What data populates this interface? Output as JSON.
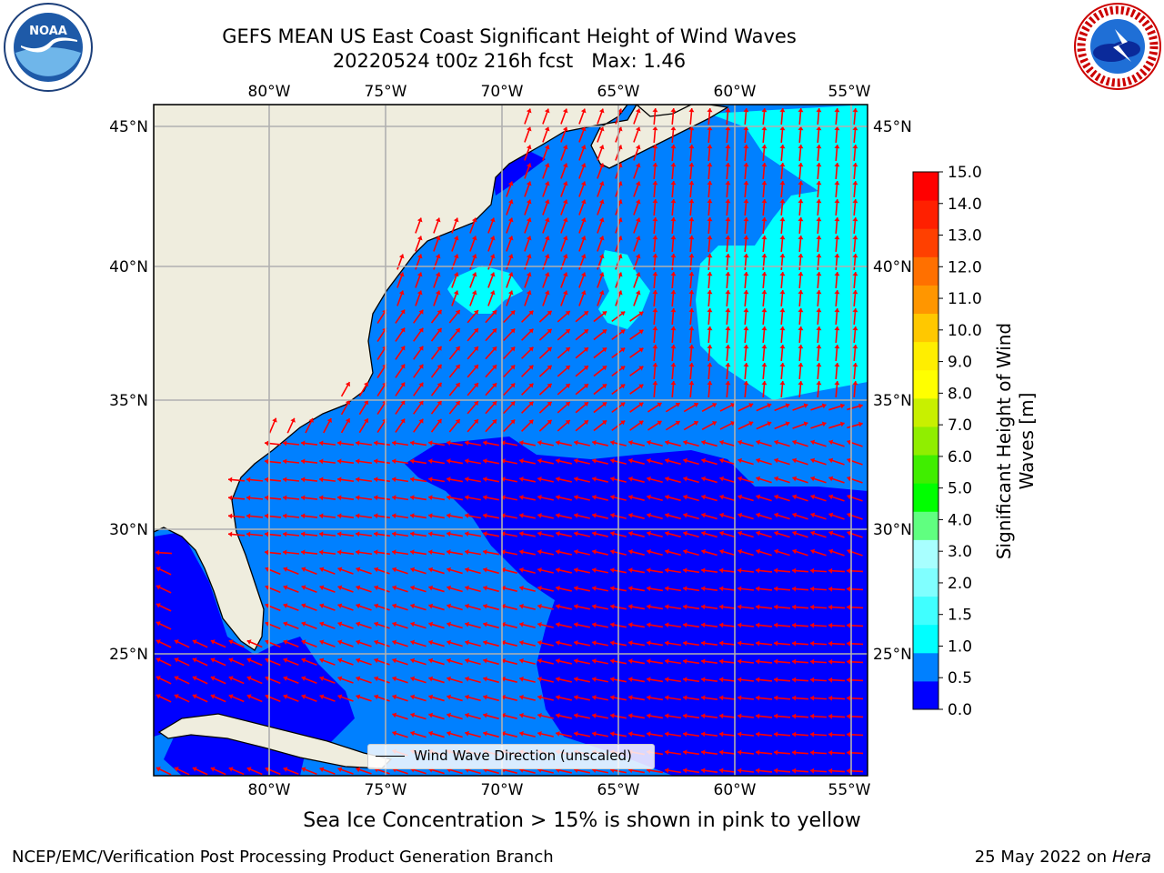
{
  "title": {
    "line1": "GEFS MEAN US East Coast Significant Height of Wind Waves",
    "line2": "20220524 t00z 216h fcst   Max: 1.46"
  },
  "logos": {
    "left": "noaa-logo",
    "left_text": "NOAA",
    "right": "nws-logo",
    "right_text": "NATIONAL WEATHER SERVICE"
  },
  "map": {
    "lon_labels": [
      "80°W",
      "75°W",
      "70°W",
      "65°W",
      "60°W",
      "55°W"
    ],
    "lat_labels": [
      "45°N",
      "40°N",
      "35°N",
      "30°N",
      "25°N"
    ],
    "legend_label": "Wind Wave Direction (unscaled)",
    "land_color": "#efedde",
    "arrow_color": "#ff0000",
    "grid": true
  },
  "colorbar": {
    "label": "Significant Height of Wind Waves [m]",
    "ticks": [
      "15.0",
      "14.0",
      "13.0",
      "12.0",
      "11.0",
      "10.0",
      "9.0",
      "8.0",
      "7.0",
      "6.0",
      "5.0",
      "4.0",
      "3.0",
      "2.0",
      "1.5",
      "1.0",
      "0.5",
      "0.0"
    ],
    "colors": [
      "#0000ff",
      "#0080ff",
      "#00ffff",
      "#40ffff",
      "#80ffff",
      "#a8ffff",
      "#60ff80",
      "#00ff00",
      "#40ee00",
      "#90ee00",
      "#c8f000",
      "#ffff00",
      "#ffee00",
      "#ffc800",
      "#ff9600",
      "#ff7000",
      "#ff4000",
      "#ff2000",
      "#ff0000"
    ]
  },
  "caption": "Sea Ice Concentration > 15% is shown in pink to yellow",
  "credit": "NCEP/EMC/Verification Post Processing Product Generation Branch",
  "timestamp_date": "25 May 2022 on",
  "timestamp_host": "Hera"
}
